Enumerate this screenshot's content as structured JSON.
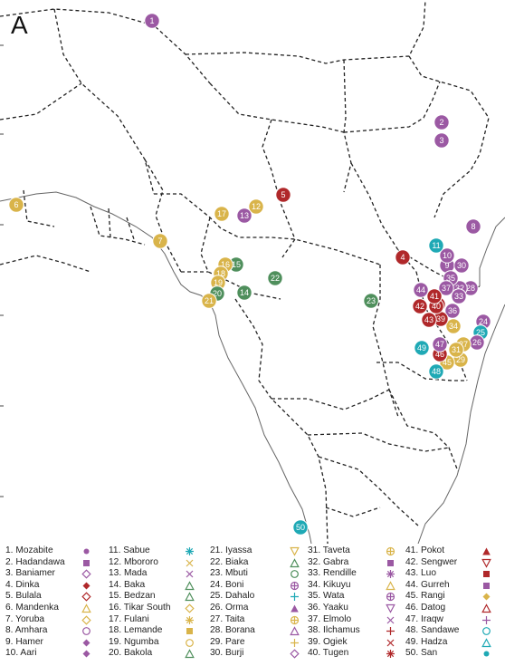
{
  "panel_label": "A",
  "colors": {
    "purple": "#9b59a3",
    "red": "#b0282a",
    "gold": "#d9b44a",
    "green": "#4f8f5c",
    "teal": "#1fa9b5",
    "border": "#222222",
    "coast": "#666666"
  },
  "markers": [
    {
      "n": "1",
      "color": "purple"
    },
    {
      "n": "2",
      "color": "purple"
    },
    {
      "n": "3",
      "color": "purple"
    },
    {
      "n": "4",
      "color": "red"
    },
    {
      "n": "5",
      "color": "red"
    },
    {
      "n": "6",
      "color": "gold"
    },
    {
      "n": "7",
      "color": "gold"
    },
    {
      "n": "8",
      "color": "purple"
    },
    {
      "n": "9",
      "color": "purple"
    },
    {
      "n": "10",
      "color": "purple"
    },
    {
      "n": "11",
      "color": "teal"
    },
    {
      "n": "12",
      "color": "gold"
    },
    {
      "n": "13",
      "color": "purple"
    },
    {
      "n": "14",
      "color": "green"
    },
    {
      "n": "15",
      "color": "green"
    },
    {
      "n": "16",
      "color": "gold"
    },
    {
      "n": "17",
      "color": "gold"
    },
    {
      "n": "18",
      "color": "gold"
    },
    {
      "n": "19",
      "color": "gold"
    },
    {
      "n": "20",
      "color": "green"
    },
    {
      "n": "21",
      "color": "gold"
    },
    {
      "n": "22",
      "color": "green"
    },
    {
      "n": "23",
      "color": "green"
    },
    {
      "n": "24",
      "color": "purple"
    },
    {
      "n": "25",
      "color": "teal"
    },
    {
      "n": "26",
      "color": "purple"
    },
    {
      "n": "27",
      "color": "gold"
    },
    {
      "n": "28",
      "color": "purple"
    },
    {
      "n": "29",
      "color": "gold"
    },
    {
      "n": "30",
      "color": "purple"
    },
    {
      "n": "31",
      "color": "gold"
    },
    {
      "n": "32",
      "color": "purple"
    },
    {
      "n": "33",
      "color": "purple"
    },
    {
      "n": "34",
      "color": "gold"
    },
    {
      "n": "35",
      "color": "purple"
    },
    {
      "n": "36",
      "color": "purple"
    },
    {
      "n": "37",
      "color": "purple"
    },
    {
      "n": "38",
      "color": "red"
    },
    {
      "n": "39",
      "color": "red"
    },
    {
      "n": "40",
      "color": "red"
    },
    {
      "n": "41",
      "color": "red"
    },
    {
      "n": "42",
      "color": "red"
    },
    {
      "n": "43",
      "color": "red"
    },
    {
      "n": "44",
      "color": "purple"
    },
    {
      "n": "45",
      "color": "gold"
    },
    {
      "n": "46",
      "color": "red"
    },
    {
      "n": "47",
      "color": "purple"
    },
    {
      "n": "48",
      "color": "teal"
    },
    {
      "n": "49",
      "color": "teal"
    },
    {
      "n": "50",
      "color": "teal"
    }
  ],
  "legend": [
    {
      "label": "1. Mozabite",
      "symbol": "dot",
      "color": "purple"
    },
    {
      "label": "2. Hadandawa",
      "symbol": "square",
      "color": "purple"
    },
    {
      "label": "3. Baniamer",
      "symbol": "diamond-open",
      "color": "purple"
    },
    {
      "label": "4. Dinka",
      "symbol": "diamond",
      "color": "red"
    },
    {
      "label": "5. Bulala",
      "symbol": "diamond-open",
      "color": "red"
    },
    {
      "label": "6. Mandenka",
      "symbol": "triangle-open",
      "color": "gold"
    },
    {
      "label": "7. Yoruba",
      "symbol": "diamond-open",
      "color": "gold"
    },
    {
      "label": "8. Amhara",
      "symbol": "circle-open",
      "color": "purple"
    },
    {
      "label": "9. Hamer",
      "symbol": "diamond",
      "color": "purple"
    },
    {
      "label": "10. Aari",
      "symbol": "diamond",
      "color": "purple"
    },
    {
      "label": "11. Sabue",
      "symbol": "asterisk",
      "color": "teal"
    },
    {
      "label": "12. Mbororo",
      "symbol": "x",
      "color": "gold"
    },
    {
      "label": "13. Mada",
      "symbol": "x",
      "color": "purple"
    },
    {
      "label": "14. Baka",
      "symbol": "triangle-open",
      "color": "green"
    },
    {
      "label": "15. Bedzan",
      "symbol": "triangle-open",
      "color": "green"
    },
    {
      "label": "16. Tikar South",
      "symbol": "diamond-open",
      "color": "gold"
    },
    {
      "label": "17. Fulani",
      "symbol": "asterisk",
      "color": "gold"
    },
    {
      "label": "18. Lemande",
      "symbol": "square",
      "color": "gold"
    },
    {
      "label": "19. Ngumba",
      "symbol": "circle-open",
      "color": "gold"
    },
    {
      "label": "20. Bakola",
      "symbol": "triangle-open",
      "color": "green"
    },
    {
      "label": "21. Iyassa",
      "symbol": "triangle-down-open",
      "color": "gold"
    },
    {
      "label": "22. Biaka",
      "symbol": "triangle-open",
      "color": "green"
    },
    {
      "label": "23. Mbuti",
      "symbol": "circle-open",
      "color": "green"
    },
    {
      "label": "24. Boni",
      "symbol": "circle-plus",
      "color": "purple"
    },
    {
      "label": "25. Dahalo",
      "symbol": "plus",
      "color": "teal"
    },
    {
      "label": "26. Orma",
      "symbol": "triangle",
      "color": "purple"
    },
    {
      "label": "27. Taita",
      "symbol": "circle-plus",
      "color": "gold"
    },
    {
      "label": "28. Borana",
      "symbol": "triangle-open",
      "color": "purple"
    },
    {
      "label": "29. Pare",
      "symbol": "plus",
      "color": "gold"
    },
    {
      "label": "30. Burji",
      "symbol": "diamond-open",
      "color": "purple"
    },
    {
      "label": "31. Taveta",
      "symbol": "circle-plus",
      "color": "gold"
    },
    {
      "label": "32. Gabra",
      "symbol": "square",
      "color": "purple"
    },
    {
      "label": "33. Rendille",
      "symbol": "asterisk",
      "color": "purple"
    },
    {
      "label": "34. Kikuyu",
      "symbol": "triangle-open",
      "color": "gold"
    },
    {
      "label": "35. Wata",
      "symbol": "circle-plus",
      "color": "purple"
    },
    {
      "label": "36. Yaaku",
      "symbol": "triangle-down-open",
      "color": "purple"
    },
    {
      "label": "37. Elmolo",
      "symbol": "x",
      "color": "purple"
    },
    {
      "label": "38. Ilchamus",
      "symbol": "plus",
      "color": "red"
    },
    {
      "label": "39. Ogiek",
      "symbol": "x",
      "color": "red"
    },
    {
      "label": "40. Tugen",
      "symbol": "asterisk",
      "color": "red"
    },
    {
      "label": "41. Pokot",
      "symbol": "triangle",
      "color": "red"
    },
    {
      "label": "42. Sengwer",
      "symbol": "triangle-down-open",
      "color": "red"
    },
    {
      "label": "43. Luo",
      "symbol": "square",
      "color": "red"
    },
    {
      "label": "44. Gurreh",
      "symbol": "square",
      "color": "purple"
    },
    {
      "label": "45. Rangi",
      "symbol": "diamond",
      "color": "gold"
    },
    {
      "label": "46. Datog",
      "symbol": "triangle-open",
      "color": "red"
    },
    {
      "label": "47. Iraqw",
      "symbol": "plus",
      "color": "purple"
    },
    {
      "label": "48. Sandawe",
      "symbol": "circle-open",
      "color": "teal"
    },
    {
      "label": "49. Hadza",
      "symbol": "triangle-open",
      "color": "teal"
    },
    {
      "label": "50. San",
      "symbol": "dot",
      "color": "teal"
    }
  ]
}
